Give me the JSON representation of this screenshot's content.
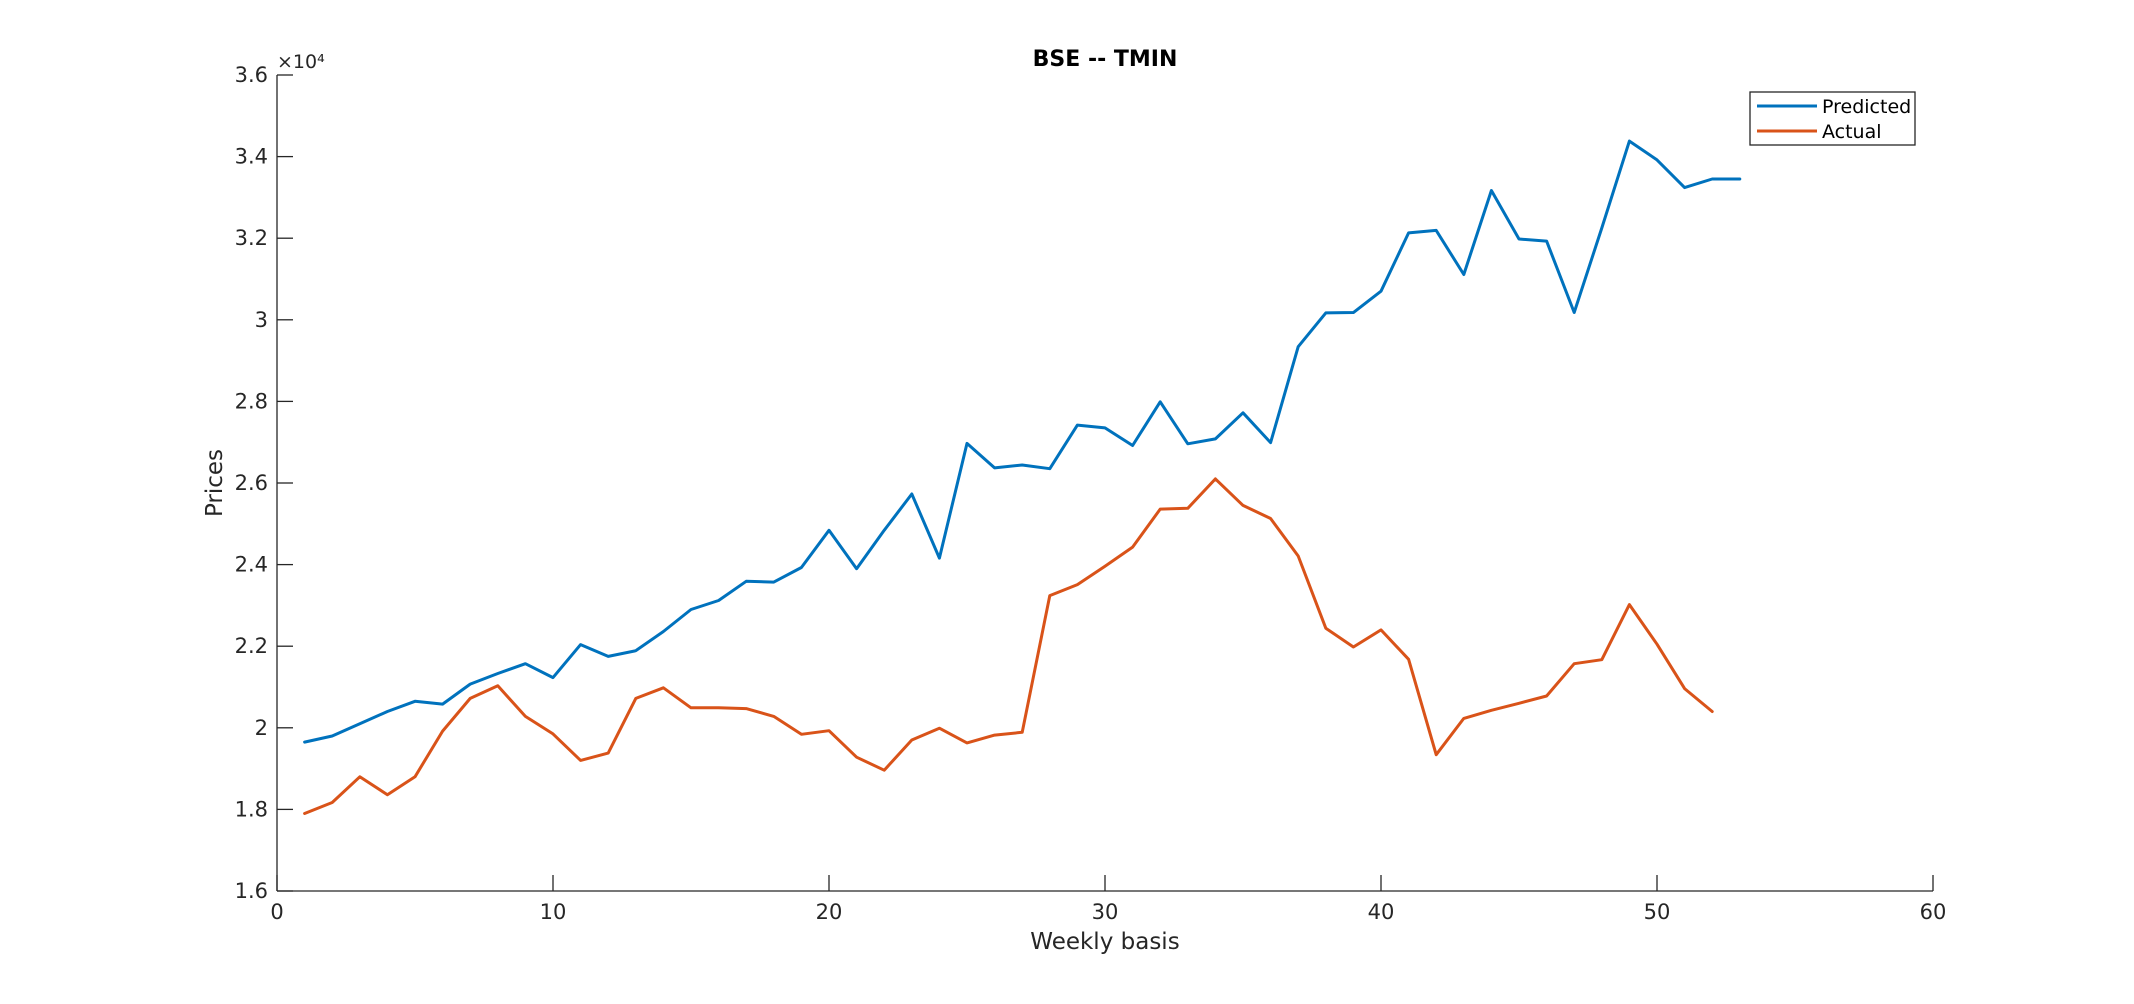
{
  "chart_data": {
    "type": "line",
    "title": "BSE -- TMIN",
    "xlabel": "Weekly basis",
    "ylabel": "Prices",
    "xlim": [
      0,
      60
    ],
    "ylim": [
      1.6,
      3.6
    ],
    "y_multiplier_label": "×10⁴",
    "xticks": [
      "0",
      "10",
      "20",
      "30",
      "40",
      "50",
      "60"
    ],
    "yticks": [
      "1.6",
      "1.8",
      "2",
      "2.2",
      "2.4",
      "2.6",
      "2.8",
      "3",
      "3.2",
      "3.4",
      "3.6"
    ],
    "grid": false,
    "legend_position": "top-right",
    "series": [
      {
        "name": "Predicted",
        "color": "#0072BD",
        "x": [
          1,
          2,
          3,
          4,
          5,
          6,
          7,
          8,
          9,
          10,
          11,
          12,
          13,
          14,
          15,
          16,
          17,
          18,
          19,
          20,
          21,
          22,
          23,
          24,
          25,
          26,
          27,
          28,
          29,
          30,
          31,
          32,
          33,
          34,
          35,
          36,
          37,
          38,
          39,
          40,
          41,
          42,
          43,
          44,
          45,
          46,
          47,
          48,
          49,
          50,
          51,
          52,
          53
        ],
        "values": [
          1.965,
          1.98,
          2.01,
          2.04,
          2.065,
          2.058,
          2.107,
          2.133,
          2.157,
          2.123,
          2.204,
          2.175,
          2.189,
          2.236,
          2.29,
          2.312,
          2.359,
          2.357,
          2.393,
          2.484,
          2.39,
          2.484,
          2.573,
          2.416,
          2.697,
          2.637,
          2.644,
          2.635,
          2.742,
          2.735,
          2.692,
          2.799,
          2.696,
          2.708,
          2.772,
          2.699,
          2.934,
          3.017,
          3.018,
          3.07,
          3.213,
          3.219,
          3.111,
          3.317,
          3.198,
          3.193,
          3.018,
          3.225,
          3.438,
          3.392,
          3.324,
          3.345,
          3.345
        ]
      },
      {
        "name": "Actual",
        "color": "#D95319",
        "x": [
          1,
          2,
          3,
          4,
          5,
          6,
          7,
          8,
          9,
          10,
          11,
          12,
          13,
          14,
          15,
          16,
          17,
          18,
          19,
          20,
          21,
          22,
          23,
          24,
          25,
          26,
          27,
          28,
          29,
          30,
          31,
          32,
          33,
          34,
          35,
          36,
          37,
          38,
          39,
          40,
          41,
          42,
          43,
          44,
          45,
          46,
          47,
          48,
          49,
          50,
          51,
          52
        ],
        "values": [
          1.79,
          1.817,
          1.88,
          1.836,
          1.88,
          1.992,
          2.072,
          2.103,
          2.028,
          1.985,
          1.92,
          1.938,
          2.072,
          2.098,
          2.049,
          2.049,
          2.047,
          2.028,
          1.984,
          1.993,
          1.928,
          1.896,
          1.97,
          1.999,
          1.963,
          1.982,
          1.989,
          2.324,
          2.351,
          2.396,
          2.443,
          2.536,
          2.538,
          2.61,
          2.545,
          2.513,
          2.421,
          2.244,
          2.198,
          2.24,
          2.168,
          1.934,
          2.023,
          2.043,
          2.06,
          2.078,
          2.157,
          2.167,
          2.302,
          2.205,
          2.096,
          2.04
        ]
      }
    ]
  }
}
